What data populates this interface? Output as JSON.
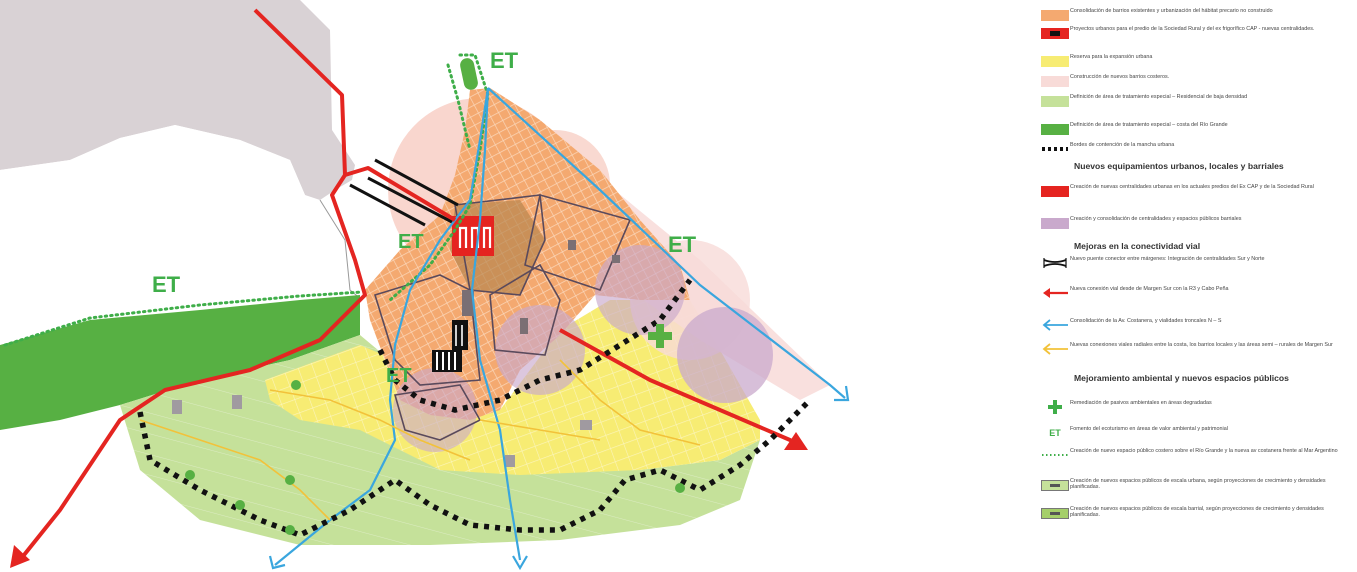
{
  "map_labels": {
    "et": "ET"
  },
  "colors": {
    "orange_consolidation": "#f4a970",
    "red_centrality": "#e52420",
    "yellow_reserve": "#f7ec73",
    "pink_coastal": "#f8dbd8",
    "light_green": "#c5e19a",
    "dark_green": "#57b043",
    "grey_land": "#d9d2d5",
    "purple_circles": "#c9a9cc",
    "red_route": "#e42521",
    "blue_route": "#3aa6de",
    "yellow_route": "#f2c23a",
    "green_et": "#3fae49"
  },
  "legend": {
    "items": [
      {
        "text": "Consolidación de barrios existentes y urbanización del hábitat precario no construido",
        "symbol": "swatch-orange"
      },
      {
        "text": "Proyectos urbanos para  el predio de la Sociedad Rural y del ex frigorífico CAP - nuevas centralidades.",
        "symbol": "swatch-red-black"
      },
      {
        "text": "Reserva para la expansión urbana",
        "symbol": "swatch-yellow"
      },
      {
        "text": "Construcción de nuevos barrios costeros.",
        "symbol": "swatch-pink"
      },
      {
        "text": "Definición de área de tratamiento especial – Residencial de baja densidad",
        "symbol": "swatch-lightgreen"
      },
      {
        "text": "Definición de área de tratamiento especial – costa del Río Grande",
        "symbol": "swatch-darkgreen"
      },
      {
        "text": "Bordes de contención de la mancha urbana",
        "symbol": "dotted-black"
      }
    ],
    "section_equipment": {
      "title": "Nuevos equipamientos urbanos, locales y barriales",
      "items": [
        {
          "text": "Creación de nuevas centralidades urbanas en los actuales predios del Ex CAP y de la Sociedad Rural",
          "symbol": "swatch-red"
        },
        {
          "text": "Creación y consolidación de centralidades y espacios públicos barriales",
          "symbol": "swatch-purple"
        }
      ]
    },
    "section_connectivity": {
      "title": "Mejoras en la conectividad vial",
      "items": [
        {
          "text": "Nuevo puente conector entre márgenes: Integración de centralidades Sur y Norte",
          "symbol": "bridge"
        },
        {
          "text": "Nueva conexión vial desde de Margen Sur con la R3 y Cabo Peña",
          "symbol": "arrow-red"
        },
        {
          "text": "Consolidación de la Av. Costanera, y vialidades troncales N – S",
          "symbol": "arrow-blue"
        },
        {
          "text": "Nuevas conexiones viales radiales entre la costa, los barrios locales y las áreas semi – rurales de Margen Sur",
          "symbol": "arrow-yellow"
        }
      ]
    },
    "section_environment": {
      "title": "Mejoramiento ambiental y nuevos espacios públicos",
      "items": [
        {
          "text": "Remediación de pasivos ambientales en áreas degradadas",
          "symbol": "green-cross"
        },
        {
          "text": "Fomento del ecoturismo en áreas de valor ambiental y patrimonial",
          "symbol": "et"
        },
        {
          "text": "Creación de nuevo espacio público costero sobre el Río Grande y la nueva av costanera frente al Mar Argentino",
          "symbol": "dotted-green"
        },
        {
          "text": "Creación de nuevos espacios públicos de escala urbana, según proyecciones de crecimiento y densidades planificadas.",
          "symbol": "swatch-greyline"
        },
        {
          "text": "Creación de nuevos espacios públicos de escala barrial, según proyecciones de crecimiento y densidades planificadas.",
          "symbol": "swatch-greenline"
        }
      ]
    }
  }
}
